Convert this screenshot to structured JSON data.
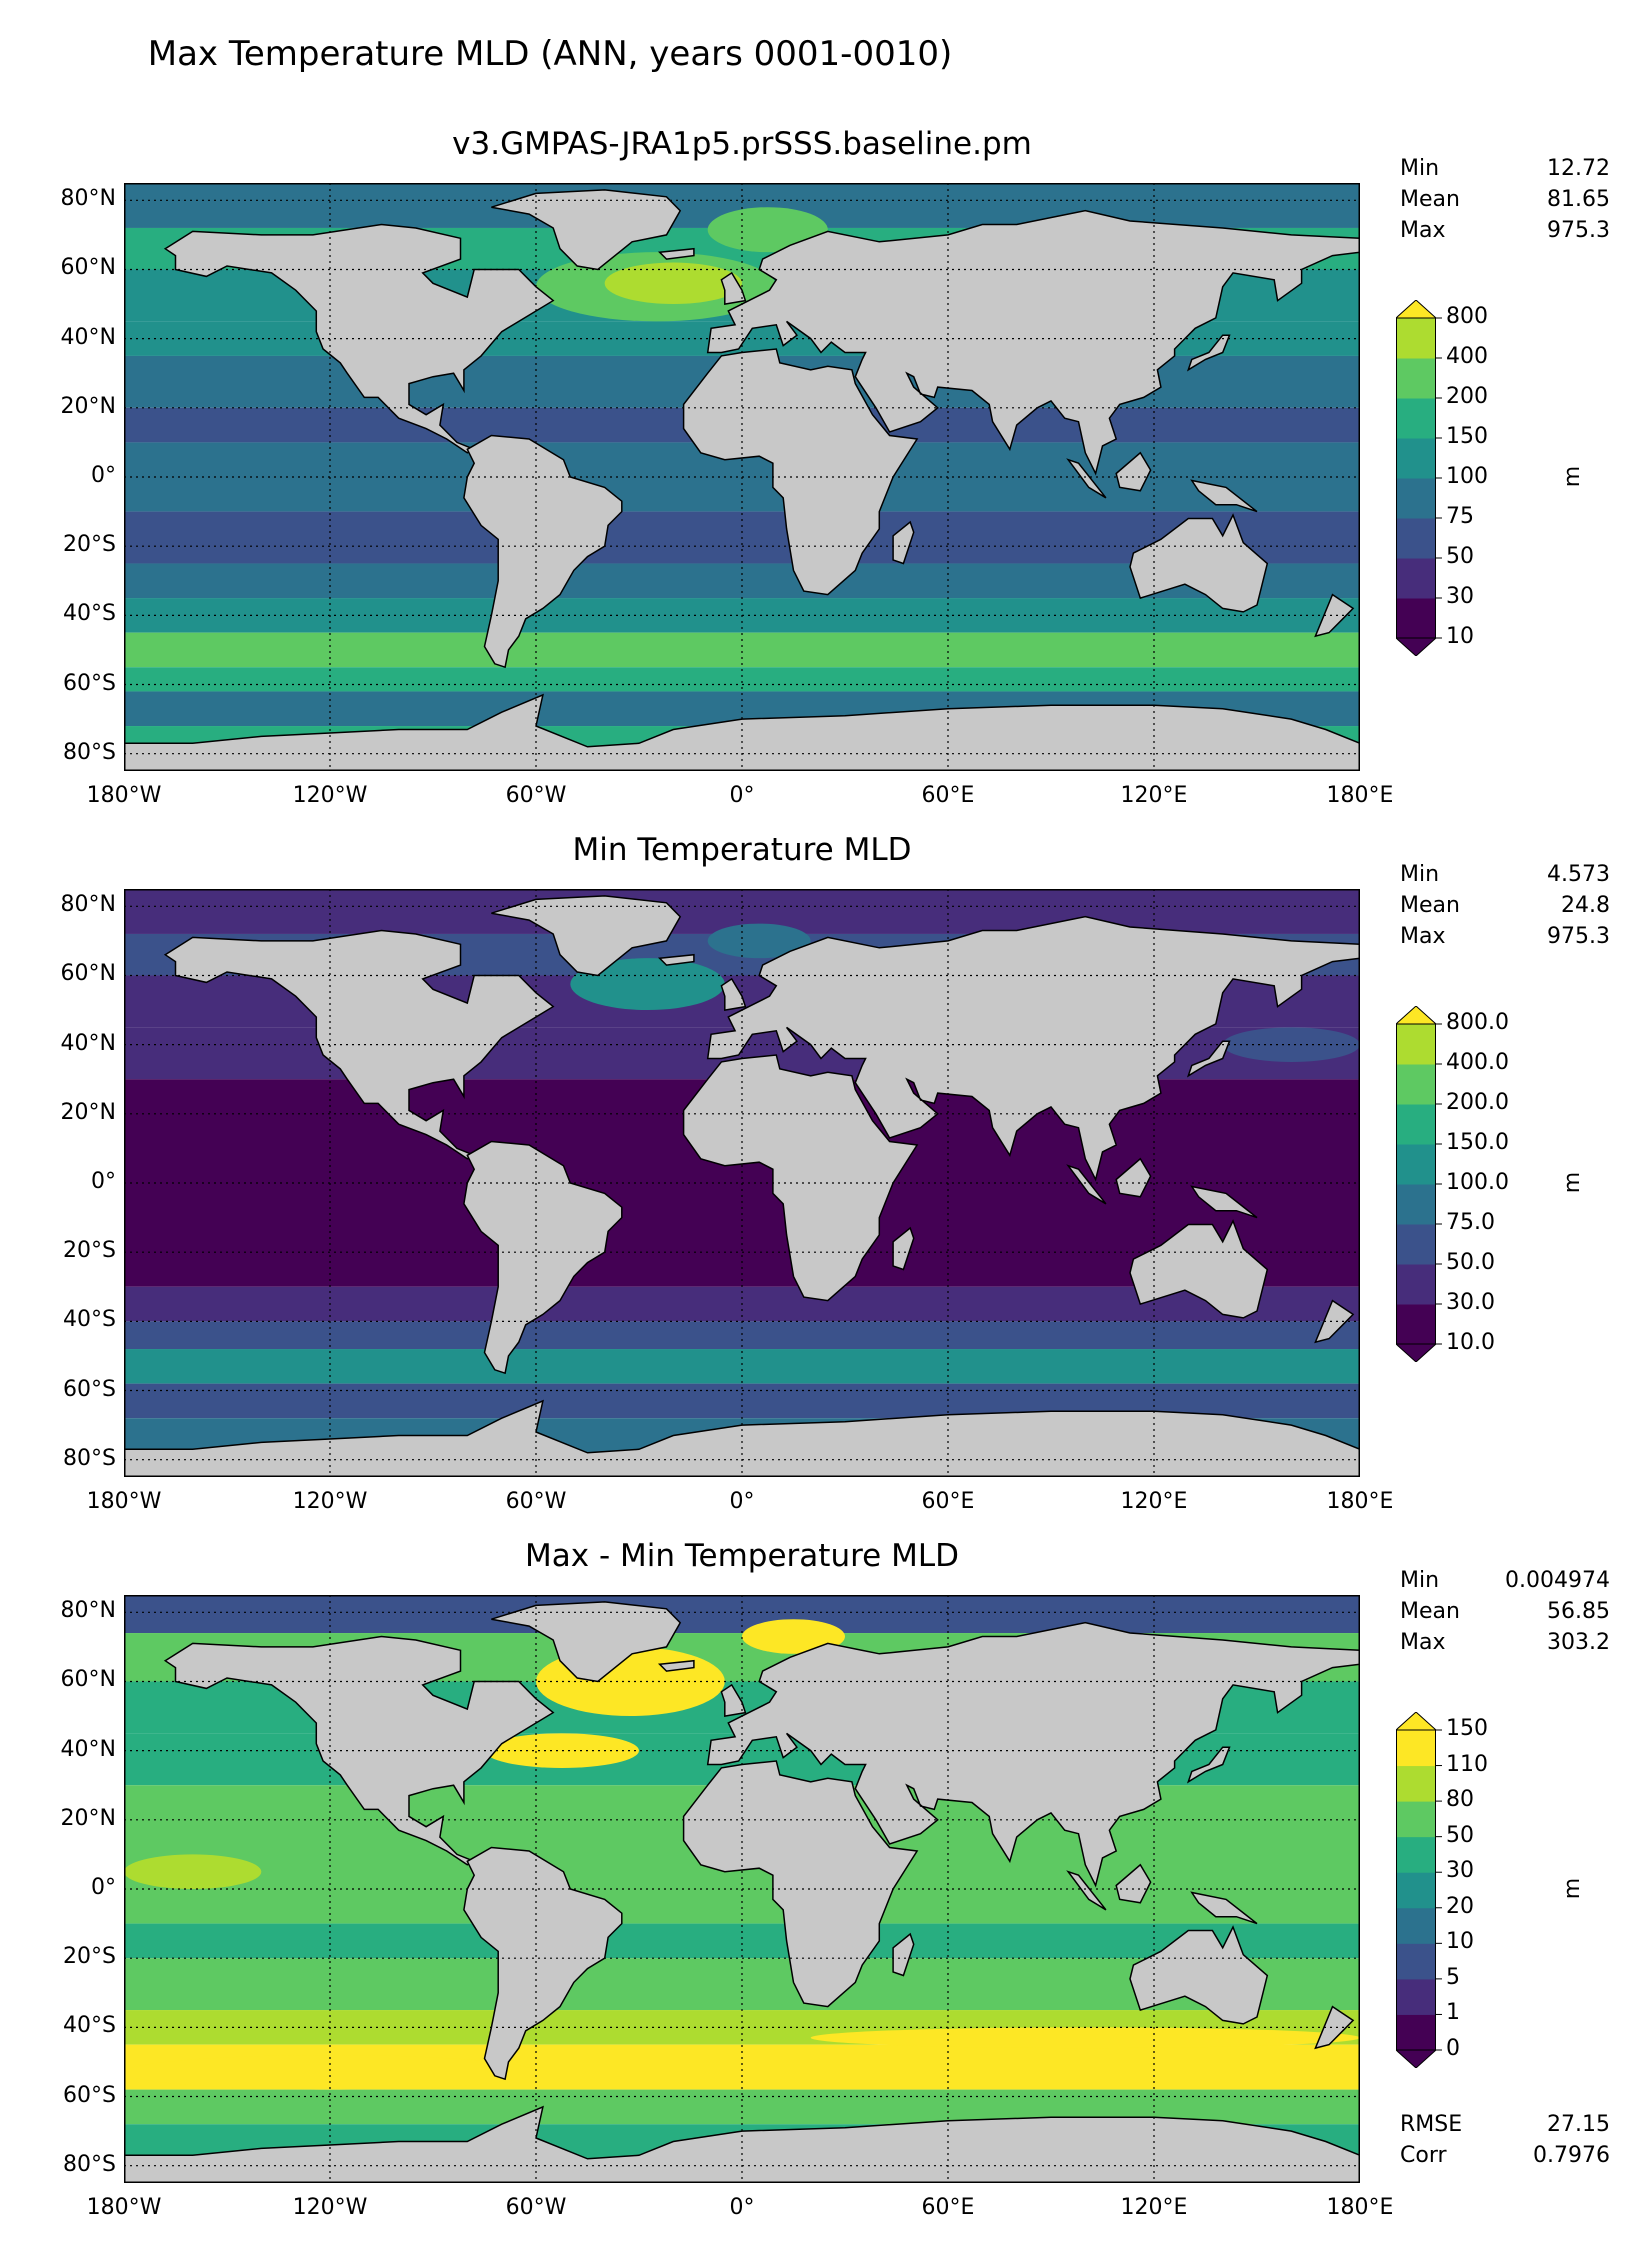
{
  "figure": {
    "title": "Max Temperature MLD (ANN, years 0001-0010)",
    "lat_ticks": [
      "80°N",
      "60°N",
      "40°N",
      "20°N",
      "0°",
      "20°S",
      "40°S",
      "60°S",
      "80°S"
    ],
    "lon_ticks": [
      "180°W",
      "120°W",
      "60°W",
      "0°",
      "60°E",
      "120°E",
      "180°E"
    ]
  },
  "panels": [
    {
      "title": "v3.GMPAS-JRA1p5.prSSS.baseline.pm",
      "stats": [
        {
          "label": "Min",
          "value": "12.72"
        },
        {
          "label": "Mean",
          "value": "81.65"
        },
        {
          "label": "Max",
          "value": "975.3"
        }
      ],
      "colorbar": {
        "levels": [
          "10",
          "30",
          "50",
          "75",
          "100",
          "150",
          "200",
          "400",
          "800"
        ],
        "colors": [
          "#440154",
          "#472d7b",
          "#3b528b",
          "#2c728e",
          "#21918c",
          "#28ae80",
          "#5ec962",
          "#addc30"
        ],
        "under": "#440154",
        "over": "#fde725",
        "unit": "m"
      }
    },
    {
      "title": "Min Temperature MLD",
      "stats": [
        {
          "label": "Min",
          "value": "4.573"
        },
        {
          "label": "Mean",
          "value": "24.8"
        },
        {
          "label": "Max",
          "value": "975.3"
        }
      ],
      "colorbar": {
        "levels": [
          "10.0",
          "30.0",
          "50.0",
          "75.0",
          "100.0",
          "150.0",
          "200.0",
          "400.0",
          "800.0"
        ],
        "colors": [
          "#440154",
          "#472d7b",
          "#3b528b",
          "#2c728e",
          "#21918c",
          "#28ae80",
          "#5ec962",
          "#addc30"
        ],
        "under": "#440154",
        "over": "#fde725",
        "unit": "m"
      }
    },
    {
      "title": "Max - Min Temperature MLD",
      "stats": [
        {
          "label": "Min",
          "value": "0.004974"
        },
        {
          "label": "Mean",
          "value": "56.85"
        },
        {
          "label": "Max",
          "value": "303.2"
        }
      ],
      "extra_stats": [
        {
          "label": "RMSE",
          "value": "27.15"
        },
        {
          "label": "Corr",
          "value": "0.7976"
        }
      ],
      "colorbar": {
        "levels": [
          "0",
          "1",
          "5",
          "10",
          "20",
          "30",
          "50",
          "80",
          "110",
          "150"
        ],
        "colors": [
          "#440154",
          "#472d7b",
          "#3b528b",
          "#2c728e",
          "#21918c",
          "#28ae80",
          "#5ec962",
          "#addc30",
          "#fde725"
        ],
        "under": "#440154",
        "over": "#fde725",
        "unit": "m"
      }
    }
  ],
  "colors": {
    "land": "#c8c8c8",
    "coast": "#000000"
  }
}
